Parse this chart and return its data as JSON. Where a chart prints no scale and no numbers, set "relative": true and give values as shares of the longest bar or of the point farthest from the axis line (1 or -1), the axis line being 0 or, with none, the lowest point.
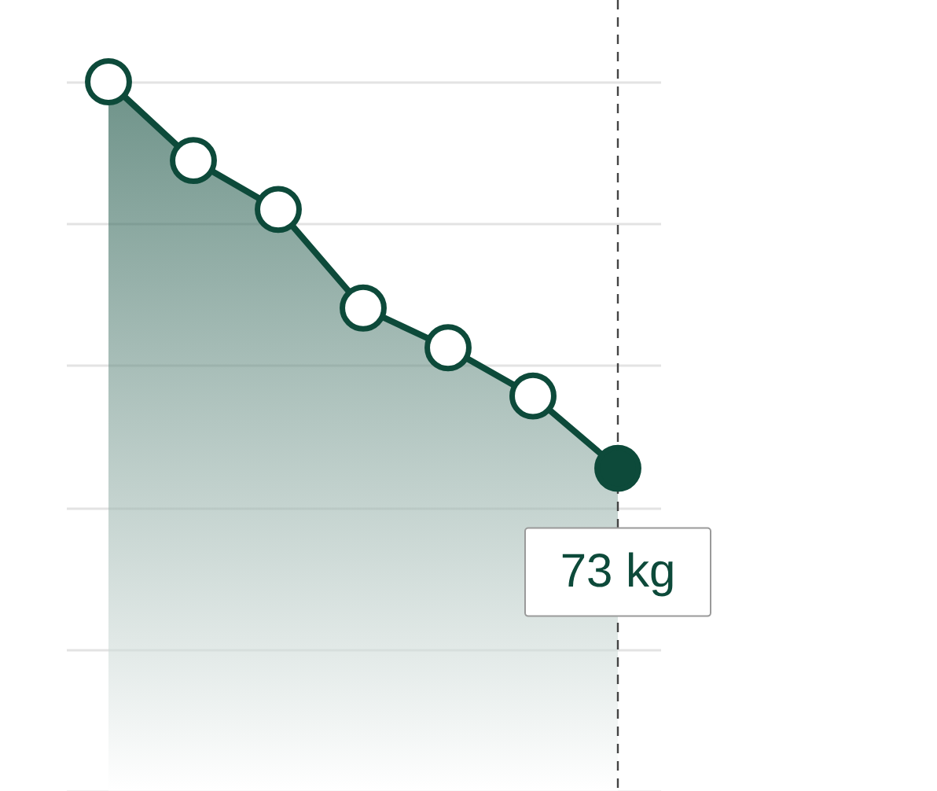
{
  "chart_data": {
    "type": "area",
    "relative": true,
    "categories": [
      null,
      null,
      null,
      null,
      null,
      null,
      null
    ],
    "series": [
      {
        "color": "#0d4a3a",
        "values": [
          1,
          0.889,
          0.82,
          0.681,
          0.625,
          0.557,
          0.455
        ]
      }
    ],
    "marker": "circle",
    "grid": "y",
    "annotations": [
      {
        "text": "73 kg",
        "y": 0.455
      }
    ]
  }
}
